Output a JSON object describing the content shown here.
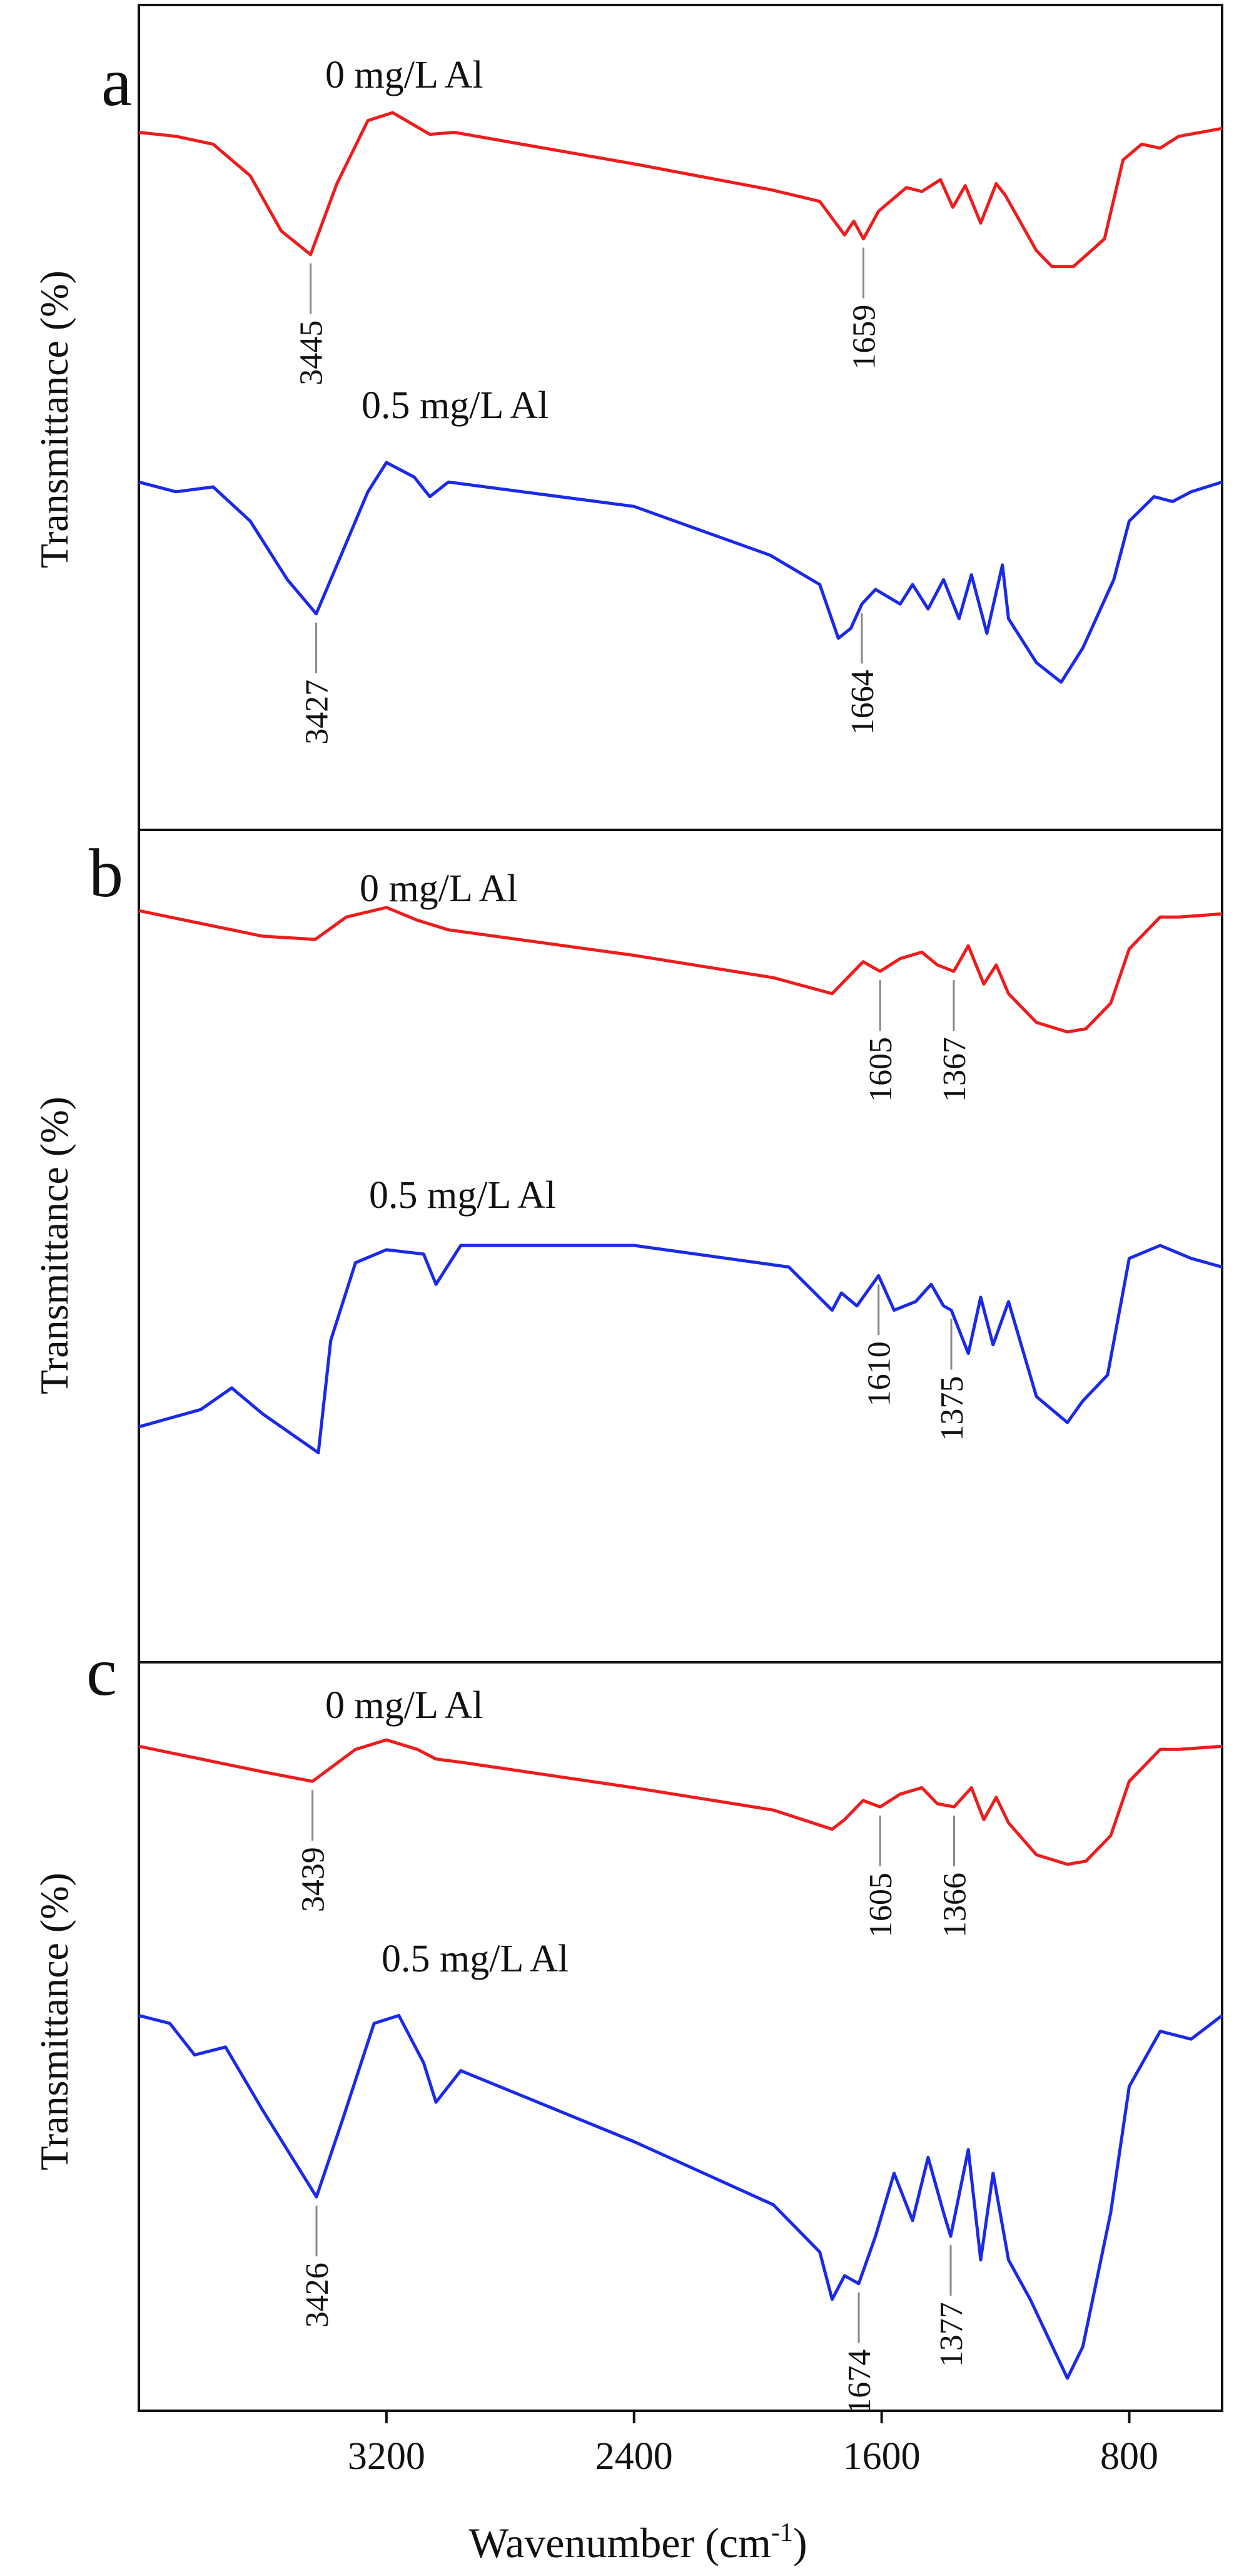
{
  "chart_data": [
    {
      "type": "line",
      "panel_label": "a",
      "ylabel": "Transmittance (%)",
      "xlabel": "Wavenumber (cm⁻¹)",
      "xlim": [
        4000,
        500
      ],
      "x_reversed": true,
      "series": [
        {
          "name": "0 mg/L Al",
          "color": "#ee1c1c",
          "x": [
            4000,
            3880,
            3760,
            3640,
            3540,
            3445,
            3360,
            3260,
            3180,
            3060,
            2980,
            2400,
            1960,
            1800,
            1720,
            1690,
            1659,
            1610,
            1520,
            1470,
            1410,
            1370,
            1330,
            1280,
            1230,
            1200,
            1100,
            1050,
            980,
            880,
            820,
            760,
            700,
            640,
            500
          ],
          "y": [
            90,
            88,
            84,
            68,
            40,
            28,
            64,
            96,
            100,
            89,
            90,
            74,
            61,
            55,
            38,
            45,
            36,
            50,
            62,
            60,
            66,
            52,
            63,
            44,
            64,
            58,
            30,
            22,
            22,
            36,
            76,
            84,
            82,
            88,
            92
          ]
        },
        {
          "name": "0.5 mg/L Al",
          "color": "#1a2ae8",
          "x": [
            4000,
            3880,
            3760,
            3640,
            3520,
            3427,
            3360,
            3260,
            3200,
            3110,
            3060,
            3000,
            2400,
            1960,
            1800,
            1740,
            1700,
            1664,
            1620,
            1540,
            1500,
            1450,
            1400,
            1350,
            1310,
            1260,
            1210,
            1190,
            1100,
            1020,
            950,
            850,
            800,
            720,
            660,
            600,
            500
          ],
          "y": [
            82,
            78,
            80,
            66,
            42,
            28,
            48,
            78,
            90,
            84,
            76,
            82,
            72,
            52,
            40,
            18,
            22,
            32,
            38,
            32,
            40,
            30,
            42,
            26,
            44,
            20,
            48,
            26,
            8,
            0,
            14,
            42,
            66,
            76,
            74,
            78,
            82
          ]
        }
      ],
      "annotations": [
        {
          "text": "3445",
          "x": 3445,
          "series": "0 mg/L Al"
        },
        {
          "text": "1659",
          "x": 1659,
          "series": "0 mg/L Al"
        },
        {
          "text": "3427",
          "x": 3427,
          "series": "0.5 mg/L Al"
        },
        {
          "text": "1664",
          "x": 1664,
          "series": "0.5 mg/L Al"
        }
      ]
    },
    {
      "type": "line",
      "panel_label": "b",
      "ylabel": "Transmittance (%)",
      "xlabel": "Wavenumber (cm⁻¹)",
      "xlim": [
        4000,
        500
      ],
      "x_reversed": true,
      "series": [
        {
          "name": "0 mg/L Al",
          "color": "#ee1c1c",
          "x": [
            4000,
            3900,
            3800,
            3700,
            3600,
            3430,
            3330,
            3200,
            3100,
            3000,
            2400,
            1950,
            1760,
            1730,
            1660,
            1605,
            1540,
            1470,
            1420,
            1367,
            1320,
            1270,
            1230,
            1190,
            1100,
            1000,
            940,
            860,
            800,
            700,
            640,
            500
          ],
          "y": [
            98,
            94,
            90,
            86,
            82,
            80,
            94,
            100,
            92,
            86,
            70,
            56,
            46,
            52,
            66,
            60,
            68,
            72,
            64,
            60,
            76,
            52,
            64,
            46,
            28,
            22,
            24,
            40,
            74,
            94,
            94,
            96
          ]
        },
        {
          "name": "0.5 mg/L Al",
          "color": "#1a2ae8",
          "x": [
            4000,
            3900,
            3800,
            3700,
            3600,
            3420,
            3380,
            3300,
            3200,
            3080,
            3040,
            2960,
            2400,
            1900,
            1760,
            1730,
            1680,
            1610,
            1560,
            1490,
            1440,
            1400,
            1375,
            1320,
            1280,
            1240,
            1190,
            1100,
            1000,
            950,
            870,
            800,
            700,
            600,
            500
          ],
          "y": [
            16,
            20,
            24,
            34,
            22,
            4,
            56,
            92,
            98,
            96,
            82,
            100,
            100,
            90,
            70,
            78,
            72,
            86,
            70,
            74,
            82,
            72,
            70,
            50,
            76,
            54,
            74,
            30,
            18,
            28,
            40,
            94,
            100,
            94,
            90
          ]
        }
      ],
      "annotations": [
        {
          "text": "1605",
          "x": 1605,
          "series": "0 mg/L Al"
        },
        {
          "text": "1367",
          "x": 1367,
          "series": "0 mg/L Al"
        },
        {
          "text": "1610",
          "x": 1610,
          "series": "0.5 mg/L Al"
        },
        {
          "text": "1375",
          "x": 1375,
          "series": "0.5 mg/L Al"
        }
      ]
    },
    {
      "type": "line",
      "panel_label": "c",
      "ylabel": "Transmittance (%)",
      "xlabel": "Wavenumber (cm⁻¹)",
      "xlim": [
        4000,
        500
      ],
      "xticks": [
        3200,
        2400,
        1600,
        800
      ],
      "x_reversed": true,
      "series": [
        {
          "name": "0 mg/L Al",
          "color": "#ee1c1c",
          "x": [
            4000,
            3900,
            3800,
            3700,
            3600,
            3439,
            3300,
            3200,
            3100,
            3040,
            2960,
            2400,
            1950,
            1760,
            1720,
            1660,
            1605,
            1540,
            1470,
            1420,
            1366,
            1310,
            1270,
            1230,
            1190,
            1100,
            1000,
            940,
            860,
            800,
            700,
            640,
            500
          ],
          "y": [
            96,
            92,
            88,
            84,
            80,
            74,
            94,
            100,
            94,
            88,
            86,
            70,
            56,
            44,
            50,
            62,
            58,
            66,
            70,
            60,
            58,
            70,
            50,
            64,
            48,
            28,
            22,
            24,
            40,
            74,
            94,
            94,
            96
          ]
        },
        {
          "name": "0.5 mg/L Al",
          "color": "#1a2ae8",
          "x": [
            4000,
            3900,
            3820,
            3720,
            3600,
            3426,
            3340,
            3240,
            3160,
            3080,
            3040,
            2960,
            2400,
            1950,
            1800,
            1760,
            1720,
            1674,
            1620,
            1560,
            1500,
            1450,
            1400,
            1377,
            1320,
            1280,
            1240,
            1190,
            1120,
            1060,
            1000,
            950,
            860,
            800,
            700,
            600,
            500
          ],
          "y": [
            92,
            90,
            82,
            84,
            68,
            46,
            66,
            90,
            92,
            80,
            70,
            78,
            60,
            44,
            32,
            20,
            26,
            24,
            36,
            52,
            40,
            56,
            42,
            36,
            58,
            30,
            52,
            30,
            20,
            10,
            0,
            8,
            42,
            74,
            88,
            86,
            92
          ]
        }
      ],
      "annotations": [
        {
          "text": "3439",
          "x": 3439,
          "series": "0 mg/L Al"
        },
        {
          "text": "1605",
          "x": 1605,
          "series": "0 mg/L Al"
        },
        {
          "text": "1366",
          "x": 1366,
          "series": "0 mg/L Al"
        },
        {
          "text": "3426",
          "x": 3426,
          "series": "0.5 mg/L Al"
        },
        {
          "text": "1674",
          "x": 1674,
          "series": "0.5 mg/L Al"
        },
        {
          "text": "1377",
          "x": 1377,
          "series": "0.5 mg/L Al"
        }
      ]
    }
  ],
  "panels": [
    {
      "label": "a",
      "ylabel": "Transmittance (%)",
      "legend_top": "0 mg/L Al",
      "legend_bottom": "0.5 mg/L Al"
    },
    {
      "label": "b",
      "ylabel": "Transmittance (%)",
      "legend_top": "0 mg/L Al",
      "legend_bottom": "0.5 mg/L Al"
    },
    {
      "label": "c",
      "ylabel": "Transmittance (%)",
      "legend_top": "0 mg/L Al",
      "legend_bottom": "0.5 mg/L Al"
    }
  ],
  "x_axis": {
    "xlabel_main": "Wavenumber (cm",
    "xlabel_sup": "-1",
    "xlabel_close": ")",
    "tick_labels": [
      "3200",
      "2400",
      "1600",
      "800"
    ]
  }
}
